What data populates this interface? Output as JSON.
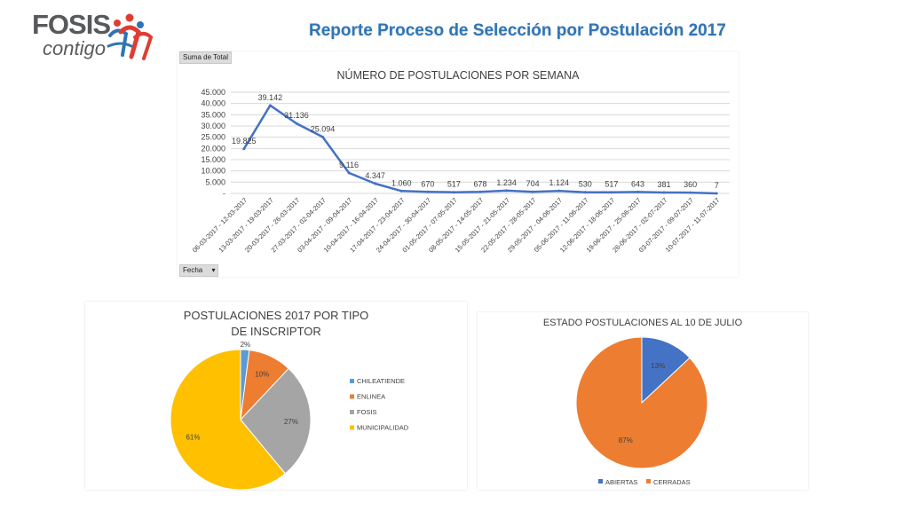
{
  "logo": {
    "brand": "FOSIS",
    "tagline": "contigo"
  },
  "header": {
    "title": "Reporte Proceso de Selección por Postulación 2017"
  },
  "pivot": {
    "value_field": "Suma de Total",
    "row_field": "Fecha"
  },
  "chart_data": [
    {
      "type": "line",
      "title": "NÚMERO DE POSTULACIONES POR SEMANA",
      "x": [
        "06-03-2017 - 12-03-2017",
        "13-03-2017 - 19-03-2017",
        "20-03-2017 - 26-03-2017",
        "27-03-2017 - 02-04-2017",
        "03-04-2017 - 09-04-2017",
        "10-04-2017 - 16-04-2017",
        "17-04-2017 - 23-04-2017",
        "24-04-2017 - 30-04-2017",
        "01-05-2017 - 07-05-2017",
        "08-05-2017 - 14-05-2017",
        "15-05-2017 - 21-05-2017",
        "22-05-2017 - 28-05-2017",
        "29-05-2017 - 04-06-2017",
        "05-06-2017 - 11-06-2017",
        "12-06-2017 - 18-06-2017",
        "19-06-2017 - 25-06-2017",
        "26-06-2017 - 02-07-2017",
        "03-07-2017 - 09-07-2017",
        "10-07-2017 - 11-07-2017"
      ],
      "values": [
        19825,
        39142,
        31136,
        25094,
        9116,
        4347,
        1060,
        670,
        517,
        678,
        1234,
        704,
        1124,
        530,
        517,
        643,
        381,
        360,
        7
      ],
      "value_labels": [
        "19.825",
        "39.142",
        "31.136",
        "25.094",
        "9.116",
        "4.347",
        "1.060",
        "670",
        "517",
        "678",
        "1.234",
        "704",
        "1.124",
        "530",
        "517",
        "643",
        "381",
        "360",
        "7"
      ],
      "y_ticks": [
        0,
        5000,
        10000,
        15000,
        20000,
        25000,
        30000,
        35000,
        40000,
        45000
      ],
      "y_tick_labels": [
        "-",
        "5.000",
        "10.000",
        "15.000",
        "20.000",
        "25.000",
        "30.000",
        "35.000",
        "40.000",
        "45.000"
      ],
      "ylim": [
        0,
        45000
      ],
      "grid": true,
      "color": "#4472c4"
    },
    {
      "type": "pie",
      "title": "POSTULACIONES 2017 POR TIPO DE INSCRIPTOR",
      "categories": [
        "CHILEATIENDE",
        "ENLINEA",
        "FOSIS",
        "MUNICIPALIDAD"
      ],
      "values": [
        2,
        10,
        27,
        61
      ],
      "value_labels": [
        "2%",
        "10%",
        "27%",
        "61%"
      ],
      "colors": [
        "#5b9bd5",
        "#ed7d31",
        "#a5a5a5",
        "#ffc000"
      ],
      "legend": "right"
    },
    {
      "type": "pie",
      "title": "ESTADO POSTULACIONES AL 10 DE JULIO",
      "categories": [
        "ABIERTAS",
        "CERRADAS"
      ],
      "values": [
        13,
        87
      ],
      "value_labels": [
        "13%",
        "87%"
      ],
      "colors": [
        "#4472c4",
        "#ed7d31"
      ],
      "legend": "bottom"
    }
  ]
}
